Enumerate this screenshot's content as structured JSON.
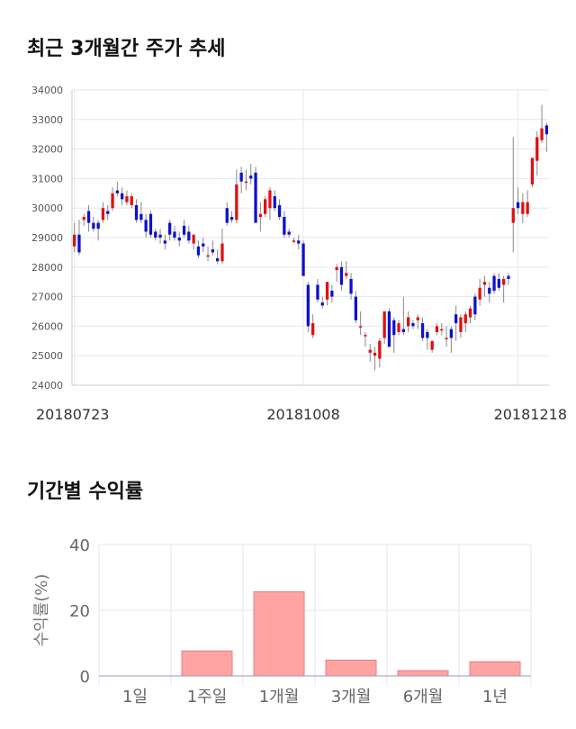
{
  "titles": {
    "price_trend": "최근 3개월간 주가 추세",
    "returns": "기간별 수익률"
  },
  "colors": {
    "up": "#e01010",
    "down": "#1010cc",
    "bar": "#ffa3a3",
    "bar_edge": "#e08080",
    "grid": "#e6e6f0"
  },
  "chart_data": [
    {
      "type": "candlestick",
      "title": "최근 3개월간 주가 추세",
      "ylim": [
        24000,
        34000
      ],
      "yticks": [
        24000,
        25000,
        26000,
        27000,
        28000,
        29000,
        30000,
        31000,
        32000,
        33000,
        34000
      ],
      "xtick_labels": [
        {
          "index": 0,
          "label": "20180723"
        },
        {
          "index": 48,
          "label": "20181008"
        },
        {
          "index": 93,
          "label": "20181218"
        }
      ],
      "candles": [
        [
          28700,
          29500,
          28500,
          29100
        ],
        [
          29100,
          29600,
          28400,
          28500
        ],
        [
          29600,
          29800,
          29400,
          29700
        ],
        [
          29900,
          30100,
          29200,
          29500
        ],
        [
          29500,
          29700,
          29200,
          29300
        ],
        [
          29500,
          29600,
          28900,
          29300
        ],
        [
          29600,
          30200,
          29500,
          30000
        ],
        [
          29900,
          30100,
          29600,
          29800
        ],
        [
          30000,
          30700,
          29900,
          30500
        ],
        [
          30600,
          30900,
          30400,
          30500
        ],
        [
          30500,
          30700,
          30100,
          30300
        ],
        [
          30200,
          30600,
          30100,
          30400
        ],
        [
          30100,
          30500,
          30000,
          30400
        ],
        [
          30100,
          30300,
          29500,
          29600
        ],
        [
          29800,
          30200,
          29500,
          29600
        ],
        [
          29600,
          29800,
          29000,
          29200
        ],
        [
          29800,
          29900,
          29000,
          29100
        ],
        [
          29200,
          29300,
          28900,
          29000
        ],
        [
          29100,
          29300,
          28800,
          29000
        ],
        [
          28900,
          29100,
          28600,
          28800
        ],
        [
          29500,
          29600,
          28900,
          29100
        ],
        [
          29200,
          29400,
          28900,
          29000
        ],
        [
          29000,
          29200,
          28700,
          28900
        ],
        [
          29400,
          29600,
          29000,
          29100
        ],
        [
          29200,
          29400,
          28800,
          28900
        ],
        [
          28800,
          29100,
          28600,
          29100
        ],
        [
          28700,
          28900,
          28300,
          28400
        ],
        [
          28800,
          29000,
          28500,
          28700
        ],
        [
          28400,
          28700,
          28200,
          28400
        ],
        [
          28600,
          28900,
          28400,
          28500
        ],
        [
          28300,
          28600,
          28100,
          28200
        ],
        [
          28200,
          29300,
          28100,
          28800
        ],
        [
          30000,
          30200,
          29400,
          29500
        ],
        [
          29700,
          29900,
          29500,
          29600
        ],
        [
          29600,
          31300,
          29500,
          30800
        ],
        [
          31200,
          31400,
          30500,
          30900
        ],
        [
          30900,
          31300,
          30600,
          30900
        ],
        [
          31100,
          31500,
          30800,
          31000
        ],
        [
          31200,
          31400,
          29500,
          29500
        ],
        [
          29700,
          30200,
          29200,
          29800
        ],
        [
          29800,
          30400,
          29700,
          30300
        ],
        [
          30000,
          30700,
          29600,
          30600
        ],
        [
          30400,
          30600,
          29900,
          30000
        ],
        [
          30100,
          30300,
          29600,
          29700
        ],
        [
          29700,
          29900,
          29000,
          29100
        ],
        [
          29200,
          29300,
          29000,
          29100
        ],
        [
          28900,
          29000,
          28800,
          28900
        ],
        [
          28900,
          29100,
          28600,
          28800
        ],
        [
          28800,
          28900,
          27700,
          27700
        ],
        [
          27400,
          27500,
          25800,
          26000
        ],
        [
          25700,
          26400,
          25600,
          26100
        ],
        [
          27400,
          27600,
          26800,
          26900
        ],
        [
          26800,
          27000,
          26600,
          26700
        ],
        [
          26900,
          27500,
          26700,
          27500
        ],
        [
          27200,
          27400,
          26800,
          27000
        ],
        [
          27900,
          28100,
          27500,
          28000
        ],
        [
          28000,
          28200,
          27200,
          27400
        ],
        [
          27700,
          28200,
          27600,
          27800
        ],
        [
          27600,
          27800,
          26900,
          27100
        ],
        [
          27000,
          27200,
          26100,
          26200
        ],
        [
          26000,
          26500,
          25700,
          26000
        ],
        [
          25700,
          25800,
          25300,
          25700
        ],
        [
          25100,
          25400,
          24800,
          25200
        ],
        [
          25000,
          25300,
          24500,
          25100
        ],
        [
          24900,
          25600,
          24600,
          25500
        ],
        [
          25600,
          26500,
          25400,
          26500
        ],
        [
          26500,
          26600,
          25300,
          25300
        ],
        [
          26200,
          26300,
          25100,
          25700
        ],
        [
          25800,
          26200,
          25700,
          26100
        ],
        [
          25900,
          27000,
          25700,
          25800
        ],
        [
          26000,
          26500,
          25800,
          26300
        ],
        [
          26100,
          26200,
          25900,
          26000
        ],
        [
          26200,
          26400,
          25900,
          26300
        ],
        [
          26100,
          26300,
          25500,
          25600
        ],
        [
          25800,
          25900,
          25200,
          25600
        ],
        [
          25200,
          25500,
          25100,
          25500
        ],
        [
          25800,
          26100,
          25700,
          26000
        ],
        [
          25900,
          26100,
          25700,
          25900
        ],
        [
          25600,
          26000,
          25300,
          25600
        ],
        [
          25900,
          26000,
          25100,
          25600
        ],
        [
          26400,
          26700,
          25500,
          26100
        ],
        [
          25800,
          26400,
          25600,
          26300
        ],
        [
          26100,
          26500,
          25800,
          26400
        ],
        [
          26300,
          26700,
          26100,
          26600
        ],
        [
          27000,
          27100,
          26200,
          26400
        ],
        [
          26900,
          27600,
          26700,
          27300
        ],
        [
          27400,
          27700,
          27000,
          27500
        ],
        [
          27300,
          27500,
          26800,
          27100
        ],
        [
          27700,
          27800,
          27100,
          27200
        ],
        [
          27600,
          27800,
          27200,
          27300
        ],
        [
          27400,
          27700,
          26800,
          27600
        ],
        [
          27700,
          27800,
          27400,
          27600
        ],
        [
          29500,
          32400,
          28500,
          30000
        ],
        [
          30200,
          30700,
          29800,
          30000
        ],
        [
          29800,
          30500,
          29500,
          30200
        ],
        [
          29800,
          30600,
          29700,
          30200
        ],
        [
          30800,
          31700,
          30700,
          31700
        ],
        [
          31600,
          32600,
          31100,
          32400
        ],
        [
          32300,
          33500,
          32200,
          32700
        ],
        [
          32800,
          32900,
          31900,
          32500
        ]
      ]
    },
    {
      "type": "bar",
      "title": "기간별 수익률",
      "ylabel": "수익률(%)",
      "ylim": [
        0,
        40
      ],
      "yticks": [
        0,
        20,
        40
      ],
      "categories": [
        "1일",
        "1주일",
        "1개월",
        "3개월",
        "6개월",
        "1년"
      ],
      "values": [
        0,
        7.6,
        25.6,
        4.8,
        1.6,
        4.3
      ]
    }
  ]
}
